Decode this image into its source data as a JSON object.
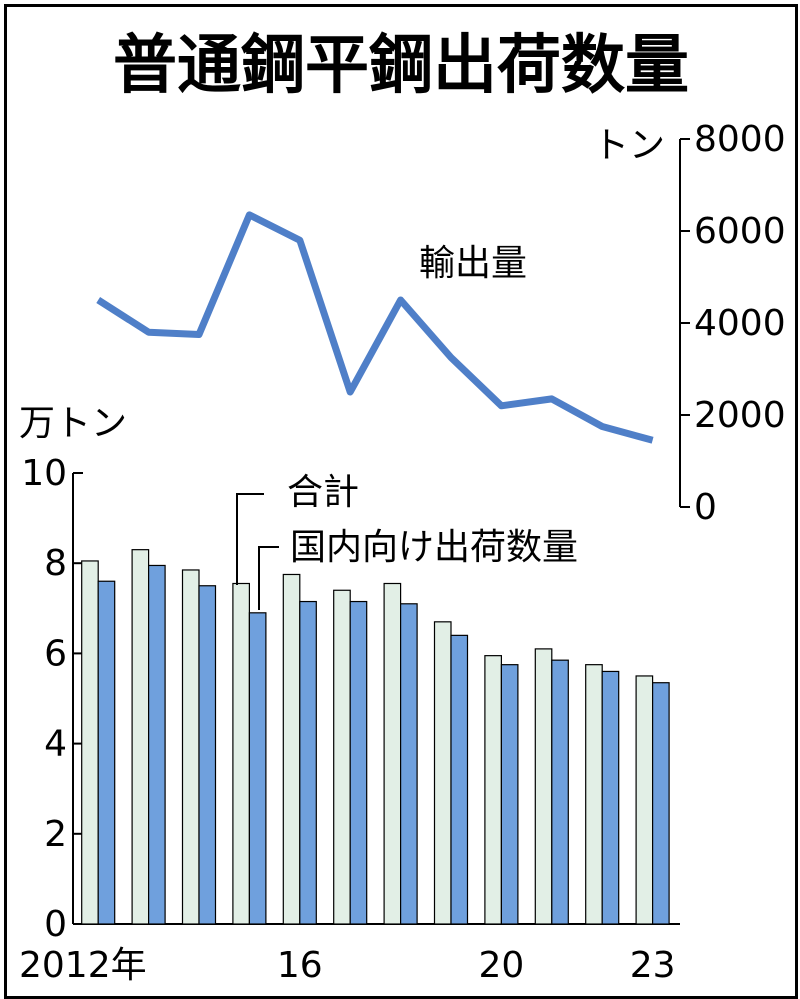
{
  "chart_data": {
    "title": "普通鋼平鋼出荷数量",
    "colors": {
      "total": "#e2efe6",
      "domestic": "#6fa0dd",
      "export_line": "#4f7fc8"
    },
    "years": [
      "2012",
      "2013",
      "2014",
      "2015",
      "2016",
      "2017",
      "2018",
      "2019",
      "2020",
      "2021",
      "2022",
      "2023"
    ],
    "x_tick_labels": [
      "2012年",
      "16",
      "20",
      "23"
    ],
    "bars": {
      "type": "bar",
      "unit_label": "万トン",
      "ylim": [
        0,
        10
      ],
      "y_ticks": [
        "0",
        "2",
        "4",
        "6",
        "8",
        "10"
      ],
      "series": [
        {
          "name": "合計",
          "values": [
            8.05,
            8.3,
            7.85,
            7.55,
            7.75,
            7.4,
            7.55,
            6.7,
            5.95,
            6.1,
            5.75,
            5.5
          ]
        },
        {
          "name": "国内向け出荷数量",
          "values": [
            7.6,
            7.95,
            7.5,
            6.9,
            7.15,
            7.15,
            7.1,
            6.4,
            5.75,
            5.85,
            5.6,
            5.35
          ]
        }
      ]
    },
    "line": {
      "type": "line",
      "name": "輸出量",
      "unit_label": "トン",
      "ylim": [
        0,
        8000
      ],
      "y_ticks": [
        "0",
        "2000",
        "4000",
        "6000",
        "8000"
      ],
      "values": [
        4500,
        3800,
        3750,
        6350,
        5800,
        2500,
        4500,
        3250,
        2200,
        2350,
        1750,
        1450
      ]
    }
  }
}
